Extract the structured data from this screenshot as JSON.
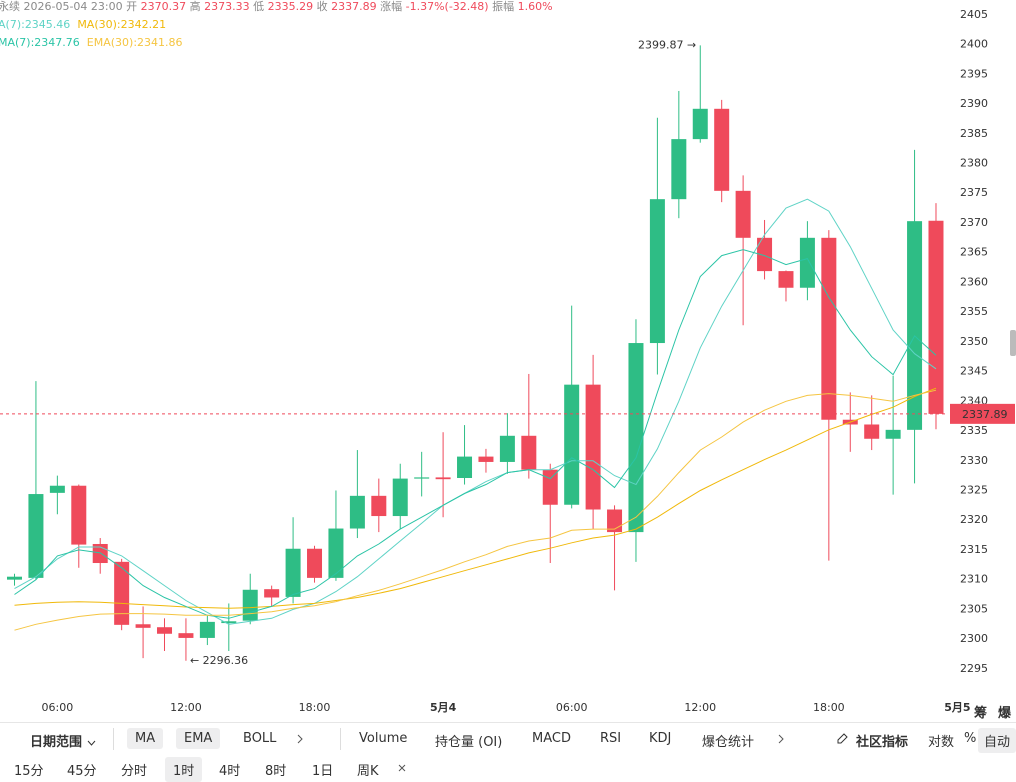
{
  "header": {
    "symbol": "永续",
    "datetime": "2026-05-04 23:00",
    "open_label": "开",
    "open": "2370.37",
    "high_label": "高",
    "high": "2373.33",
    "low_label": "低",
    "low": "2335.29",
    "close_label": "收",
    "close": "2337.89",
    "change_label": "涨幅",
    "change": "-1.37%(-32.48)",
    "amplitude_label": "振幅",
    "amplitude": "1.60%"
  },
  "chart_data": {
    "type": "candlestick",
    "categories": [
      null,
      null,
      "06:00",
      null,
      null,
      null,
      null,
      null,
      "12:00",
      null,
      null,
      null,
      null,
      null,
      "18:00",
      null,
      null,
      null,
      null,
      null,
      "5月4",
      null,
      null,
      null,
      null,
      null,
      "06:00",
      null,
      null,
      null,
      null,
      null,
      "12:00",
      null,
      null,
      null,
      null,
      null,
      "18:00",
      null,
      null,
      null,
      null,
      null,
      "5月5"
    ],
    "open": [
      2310,
      2310.3,
      2324.6,
      2325.8,
      2316,
      2313,
      2302.5,
      2302,
      2301,
      2300.2,
      2302.7,
      2303.1,
      2308.4,
      2307.1,
      2315.2,
      2310.3,
      2318.6,
      2324.1,
      2320.7,
      2327,
      2327.2,
      2327.1,
      2330.7,
      2329.8,
      2334.2,
      2328.5,
      2322.6,
      2342.8,
      2321.8,
      2318,
      2349.8,
      2374,
      2384.1,
      2389.2,
      2375.4,
      2367.5,
      2361.9,
      2359.1,
      2367.5,
      2336.9,
      2336.1,
      2333.7,
      2335.2,
      2370.37,
      null
    ],
    "high": [
      2311,
      2343.4,
      2327.5,
      2326,
      2317,
      2313.5,
      2305.5,
      2303.5,
      2303.5,
      2304,
      2306,
      2311,
      2309,
      2320.5,
      2315.7,
      2325,
      2331.8,
      2327,
      2329.5,
      2331.5,
      2334.8,
      2336,
      2332,
      2338,
      2344.6,
      2329.5,
      2356.1,
      2347.8,
      2322.5,
      2353.8,
      2387.7,
      2392.2,
      2399.87,
      2390.7,
      2378,
      2370.5,
      2362,
      2370.3,
      2368.8,
      2341.5,
      2341,
      2344.3,
      2382.3,
      2373.33,
      null
    ],
    "low": [
      2309,
      2310,
      2321,
      2312,
      2311,
      2301.5,
      2296.8,
      2298,
      2296.36,
      2299,
      2298,
      2302.5,
      2305.5,
      2306,
      2309.5,
      2309.8,
      2317,
      2318,
      2318.5,
      2324,
      2320.5,
      2326,
      2328,
      2327.8,
      2327,
      2312.8,
      2322,
      2318.5,
      2308.2,
      2313,
      2344.5,
      2370.8,
      2383.5,
      2373.5,
      2352.8,
      2360.5,
      2356.8,
      2357,
      2313.2,
      2331.5,
      2331.8,
      2324.3,
      2326.2,
      2335.29,
      null
    ],
    "close": [
      2310.5,
      2324.4,
      2325.8,
      2315.9,
      2312.8,
      2302.4,
      2301.9,
      2300.9,
      2300.2,
      2302.9,
      2303.0,
      2308.3,
      2307,
      2315.2,
      2310.3,
      2318.6,
      2324.1,
      2320.7,
      2327,
      2327.2,
      2326.9,
      2330.7,
      2329.8,
      2334.2,
      2328.5,
      2322.6,
      2342.8,
      2321.8,
      2318.0,
      2349.8,
      2374.0,
      2384.1,
      2389.2,
      2375.4,
      2367.5,
      2361.9,
      2359.1,
      2367.5,
      2336.9,
      2336.1,
      2333.7,
      2335.2,
      2370.3,
      2337.89,
      null
    ],
    "up_color": "#2ebd85",
    "down_color": "#ef4a5b",
    "series": [
      {
        "name": "A(7):2345.46",
        "color": "#5fd3c6",
        "values": [
          2308.5,
          2310.5,
          2313.5,
          2315.5,
          2315.5,
          2314,
          2311.5,
          2309,
          2306.5,
          2304.5,
          2302.5,
          2303,
          2303.5,
          2305,
          2306,
          2308,
          2310.5,
          2313.5,
          2316.5,
          2319.5,
          2322.5,
          2324.5,
          2326.5,
          2328,
          2328.5,
          2328.5,
          2330,
          2330,
          2327.5,
          2326,
          2332,
          2340,
          2349,
          2356,
          2362,
          2368,
          2372.5,
          2374,
          2372,
          2366,
          2359,
          2352,
          2348,
          2345.46,
          null
        ]
      },
      {
        "name": "MA(30):2342.21",
        "color": "#f0b90b",
        "values": [
          2305.7,
          2306,
          2306.2,
          2306.3,
          2306.2,
          2306,
          2305.8,
          2305.6,
          2305.4,
          2305.3,
          2305.2,
          2305.3,
          2305.5,
          2305.8,
          2306,
          2306.5,
          2307,
          2307.7,
          2308.5,
          2309.5,
          2310.5,
          2311.5,
          2312.5,
          2313.5,
          2314.5,
          2315.3,
          2316.2,
          2317,
          2317.5,
          2318.5,
          2320.5,
          2322.8,
          2325,
          2326.8,
          2328.5,
          2330.2,
          2331.8,
          2333.5,
          2335.2,
          2336.5,
          2337.8,
          2339,
          2340.8,
          2342.21,
          null
        ]
      },
      {
        "name": "MA(7):2347.76",
        "color": "#2bc4a6",
        "values": [
          2307.5,
          2310,
          2314,
          2315,
          2314.5,
          2312,
          2309,
          2307,
          2305.5,
          2304,
          2303.5,
          2304.5,
          2305.5,
          2307.5,
          2308.5,
          2311,
          2314,
          2316,
          2318.5,
          2320.5,
          2322.5,
          2324.5,
          2326,
          2328,
          2328.5,
          2327,
          2330.5,
          2328.5,
          2325.5,
          2330.5,
          2341.5,
          2352,
          2361,
          2364.5,
          2365.5,
          2364.5,
          2363,
          2364,
          2357.5,
          2352,
          2347.5,
          2344.5,
          2351,
          2347.76,
          null
        ]
      },
      {
        "name": "EMA(30):2341.86",
        "color": "#f5c542",
        "values": [
          2301.5,
          2302.5,
          2303.2,
          2303.8,
          2304.2,
          2304.3,
          2304.3,
          2304.2,
          2304,
          2304,
          2304,
          2304.3,
          2304.6,
          2305.2,
          2305.6,
          2306.3,
          2307.3,
          2308.2,
          2309.3,
          2310.5,
          2311.7,
          2313,
          2314.2,
          2315.6,
          2316.5,
          2317,
          2318.3,
          2318.5,
          2318.5,
          2320.5,
          2324,
          2328,
          2331.8,
          2334,
          2336.5,
          2338.5,
          2340,
          2341,
          2341.3,
          2341,
          2340.5,
          2340,
          2341,
          2341.86,
          null
        ]
      }
    ],
    "ylim": [
      2290.6,
      2407.5
    ],
    "yticks": [
      2295,
      2300,
      2305,
      2310,
      2315,
      2320,
      2325,
      2330,
      2335,
      2340,
      2345,
      2350,
      2355,
      2360,
      2365,
      2370,
      2375,
      2380,
      2385,
      2390,
      2395,
      2400,
      2405
    ],
    "grid": false,
    "last_price": 2337.89,
    "max_marker": {
      "value": 2399.87,
      "label": "2399.87 →"
    },
    "min_marker": {
      "value": 2296.36,
      "label": "← 2296.36"
    }
  },
  "side_labels": [
    "筹",
    "爆"
  ],
  "toolbar": {
    "row1": [
      "日期范围",
      "MA",
      "EMA",
      "BOLL",
      "Volume",
      "持仓量 (OI)",
      "MACD",
      "RSI",
      "KDJ",
      "爆仓统计",
      "社区指标",
      "对数",
      "%",
      "自动"
    ],
    "row2": [
      "15分",
      "45分",
      "分时",
      "1时",
      "4时",
      "8时",
      "1日",
      "周K"
    ]
  }
}
